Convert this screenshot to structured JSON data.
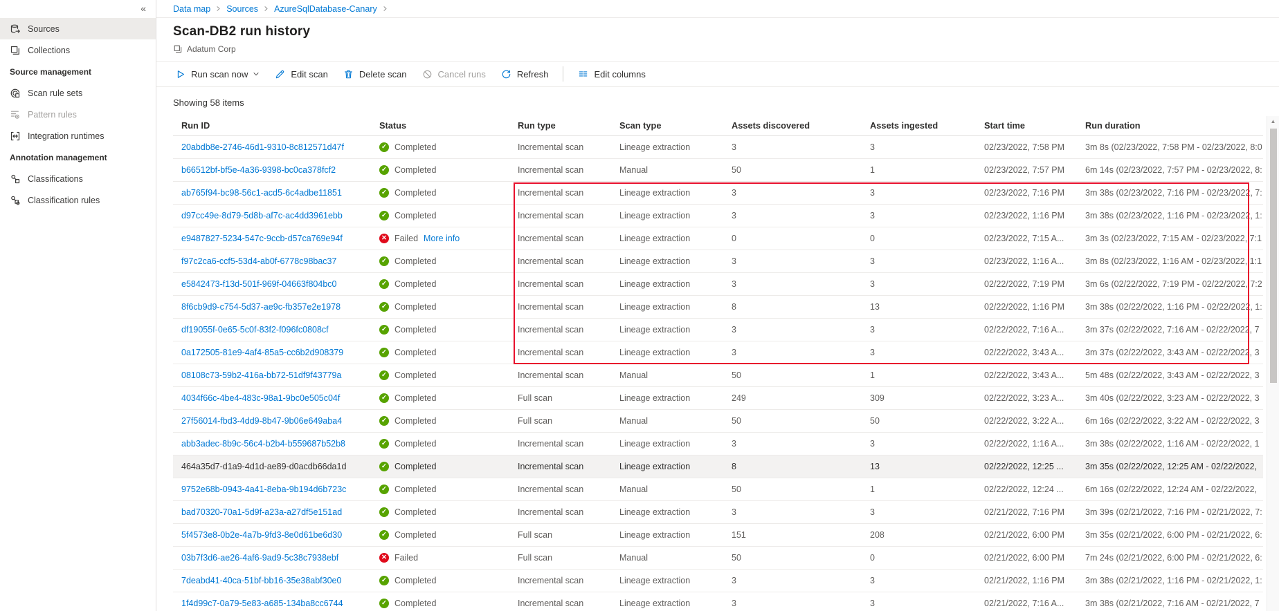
{
  "app": {
    "collapse_label": "«"
  },
  "sidebar": {
    "items": [
      {
        "type": "item",
        "label": "Sources",
        "icon": "sources-icon",
        "selected": true,
        "disabled": false
      },
      {
        "type": "item",
        "label": "Collections",
        "icon": "collections-icon",
        "selected": false,
        "disabled": false
      },
      {
        "type": "section",
        "label": "Source management"
      },
      {
        "type": "item",
        "label": "Scan rule sets",
        "icon": "scan-rule-sets-icon",
        "selected": false,
        "disabled": false
      },
      {
        "type": "item",
        "label": "Pattern rules",
        "icon": "pattern-rules-icon",
        "selected": false,
        "disabled": true
      },
      {
        "type": "item",
        "label": "Integration runtimes",
        "icon": "integration-runtimes-icon",
        "selected": false,
        "disabled": false
      },
      {
        "type": "section",
        "label": "Annotation management"
      },
      {
        "type": "item",
        "label": "Classifications",
        "icon": "classifications-icon",
        "selected": false,
        "disabled": false
      },
      {
        "type": "item",
        "label": "Classification rules",
        "icon": "classification-rules-icon",
        "selected": false,
        "disabled": false
      }
    ]
  },
  "breadcrumb": {
    "items": [
      "Data map",
      "Sources",
      "AzureSqlDatabase-Canary"
    ],
    "trailing_separator": true
  },
  "header": {
    "title": "Scan-DB2 run history",
    "collection": "Adatum Corp",
    "collection_icon": "collection-badge-icon"
  },
  "toolbar": {
    "buttons": [
      {
        "label": "Run scan now",
        "icon": "play-icon",
        "has_dropdown": true,
        "disabled": false,
        "separated": false
      },
      {
        "label": "Edit scan",
        "icon": "pencil-icon",
        "has_dropdown": false,
        "disabled": false,
        "separated": false
      },
      {
        "label": "Delete scan",
        "icon": "trash-icon",
        "has_dropdown": false,
        "disabled": false,
        "separated": false
      },
      {
        "label": "Cancel runs",
        "icon": "cancel-icon",
        "has_dropdown": false,
        "disabled": true,
        "separated": false
      },
      {
        "label": "Refresh",
        "icon": "refresh-icon",
        "has_dropdown": false,
        "disabled": false,
        "separated": false
      },
      {
        "label": "Edit columns",
        "icon": "columns-icon",
        "has_dropdown": false,
        "disabled": false,
        "separated": true
      }
    ]
  },
  "table": {
    "summary": "Showing 58 items",
    "columns": [
      "Run ID",
      "Status",
      "Run type",
      "Scan type",
      "Assets discovered",
      "Assets ingested",
      "Start time",
      "Run duration"
    ],
    "rows": [
      {
        "run_id": "20abdb8e-2746-46d1-9310-8c812571d47f",
        "status": "Completed",
        "more_info": "",
        "run_type": "Incremental scan",
        "scan_type": "Lineage extraction",
        "assets_discovered": "3",
        "assets_ingested": "3",
        "start_time": "02/23/2022, 7:58 PM",
        "run_duration": "3m 8s (02/23/2022, 7:58 PM - 02/23/2022, 8:0",
        "highlighted": false
      },
      {
        "run_id": "b66512bf-bf5e-4a36-9398-bc0ca378fcf2",
        "status": "Completed",
        "more_info": "",
        "run_type": "Incremental scan",
        "scan_type": "Manual",
        "assets_discovered": "50",
        "assets_ingested": "1",
        "start_time": "02/23/2022, 7:57 PM",
        "run_duration": "6m 14s (02/23/2022, 7:57 PM - 02/23/2022, 8:",
        "highlighted": false
      },
      {
        "run_id": "ab765f94-bc98-56c1-acd5-6c4adbe11851",
        "status": "Completed",
        "more_info": "",
        "run_type": "Incremental scan",
        "scan_type": "Lineage extraction",
        "assets_discovered": "3",
        "assets_ingested": "3",
        "start_time": "02/23/2022, 7:16 PM",
        "run_duration": "3m 38s (02/23/2022, 7:16 PM - 02/23/2022, 7:",
        "highlighted": false
      },
      {
        "run_id": "d97cc49e-8d79-5d8b-af7c-ac4dd3961ebb",
        "status": "Completed",
        "more_info": "",
        "run_type": "Incremental scan",
        "scan_type": "Lineage extraction",
        "assets_discovered": "3",
        "assets_ingested": "3",
        "start_time": "02/23/2022, 1:16 PM",
        "run_duration": "3m 38s (02/23/2022, 1:16 PM - 02/23/2022, 1:",
        "highlighted": false
      },
      {
        "run_id": "e9487827-5234-547c-9ccb-d57ca769e94f",
        "status": "Failed",
        "more_info": "More info",
        "run_type": "Incremental scan",
        "scan_type": "Lineage extraction",
        "assets_discovered": "0",
        "assets_ingested": "0",
        "start_time": "02/23/2022, 7:15 A...",
        "run_duration": "3m 3s (02/23/2022, 7:15 AM - 02/23/2022, 7:1",
        "highlighted": false
      },
      {
        "run_id": "f97c2ca6-ccf5-53d4-ab0f-6778c98bac37",
        "status": "Completed",
        "more_info": "",
        "run_type": "Incremental scan",
        "scan_type": "Lineage extraction",
        "assets_discovered": "3",
        "assets_ingested": "3",
        "start_time": "02/23/2022, 1:16 A...",
        "run_duration": "3m 8s (02/23/2022, 1:16 AM - 02/23/2022, 1:1",
        "highlighted": false
      },
      {
        "run_id": "e5842473-f13d-501f-969f-04663f804bc0",
        "status": "Completed",
        "more_info": "",
        "run_type": "Incremental scan",
        "scan_type": "Lineage extraction",
        "assets_discovered": "3",
        "assets_ingested": "3",
        "start_time": "02/22/2022, 7:19 PM",
        "run_duration": "3m 6s (02/22/2022, 7:19 PM - 02/22/2022, 7:2",
        "highlighted": false
      },
      {
        "run_id": "8f6cb9d9-c754-5d37-ae9c-fb357e2e1978",
        "status": "Completed",
        "more_info": "",
        "run_type": "Incremental scan",
        "scan_type": "Lineage extraction",
        "assets_discovered": "8",
        "assets_ingested": "13",
        "start_time": "02/22/2022, 1:16 PM",
        "run_duration": "3m 38s (02/22/2022, 1:16 PM - 02/22/2022, 1:",
        "highlighted": false
      },
      {
        "run_id": "df19055f-0e65-5c0f-83f2-f096fc0808cf",
        "status": "Completed",
        "more_info": "",
        "run_type": "Incremental scan",
        "scan_type": "Lineage extraction",
        "assets_discovered": "3",
        "assets_ingested": "3",
        "start_time": "02/22/2022, 7:16 A...",
        "run_duration": "3m 37s (02/22/2022, 7:16 AM - 02/22/2022, 7",
        "highlighted": false
      },
      {
        "run_id": "0a172505-81e9-4af4-85a5-cc6b2d908379",
        "status": "Completed",
        "more_info": "",
        "run_type": "Incremental scan",
        "scan_type": "Lineage extraction",
        "assets_discovered": "3",
        "assets_ingested": "3",
        "start_time": "02/22/2022, 3:43 A...",
        "run_duration": "3m 37s (02/22/2022, 3:43 AM - 02/22/2022, 3",
        "highlighted": false
      },
      {
        "run_id": "08108c73-59b2-416a-bb72-51df9f43779a",
        "status": "Completed",
        "more_info": "",
        "run_type": "Incremental scan",
        "scan_type": "Manual",
        "assets_discovered": "50",
        "assets_ingested": "1",
        "start_time": "02/22/2022, 3:43 A...",
        "run_duration": "5m 48s (02/22/2022, 3:43 AM - 02/22/2022, 3",
        "highlighted": false
      },
      {
        "run_id": "4034f66c-4be4-483c-98a1-9bc0e505c04f",
        "status": "Completed",
        "more_info": "",
        "run_type": "Full scan",
        "scan_type": "Lineage extraction",
        "assets_discovered": "249",
        "assets_ingested": "309",
        "start_time": "02/22/2022, 3:23 A...",
        "run_duration": "3m 40s (02/22/2022, 3:23 AM - 02/22/2022, 3",
        "highlighted": false
      },
      {
        "run_id": "27f56014-fbd3-4dd9-8b47-9b06e649aba4",
        "status": "Completed",
        "more_info": "",
        "run_type": "Full scan",
        "scan_type": "Manual",
        "assets_discovered": "50",
        "assets_ingested": "50",
        "start_time": "02/22/2022, 3:22 A...",
        "run_duration": "6m 16s (02/22/2022, 3:22 AM - 02/22/2022, 3",
        "highlighted": false
      },
      {
        "run_id": "abb3adec-8b9c-56c4-b2b4-b559687b52b8",
        "status": "Completed",
        "more_info": "",
        "run_type": "Incremental scan",
        "scan_type": "Lineage extraction",
        "assets_discovered": "3",
        "assets_ingested": "3",
        "start_time": "02/22/2022, 1:16 A...",
        "run_duration": "3m 38s (02/22/2022, 1:16 AM - 02/22/2022, 1",
        "highlighted": false
      },
      {
        "run_id": "464a35d7-d1a9-4d1d-ae89-d0acdb66da1d",
        "status": "Completed",
        "more_info": "",
        "run_type": "Incremental scan",
        "scan_type": "Lineage extraction",
        "assets_discovered": "8",
        "assets_ingested": "13",
        "start_time": "02/22/2022, 12:25 ...",
        "run_duration": "3m 35s (02/22/2022, 12:25 AM - 02/22/2022,",
        "highlighted": true
      },
      {
        "run_id": "9752e68b-0943-4a41-8eba-9b194d6b723c",
        "status": "Completed",
        "more_info": "",
        "run_type": "Incremental scan",
        "scan_type": "Manual",
        "assets_discovered": "50",
        "assets_ingested": "1",
        "start_time": "02/22/2022, 12:24 ...",
        "run_duration": "6m 16s (02/22/2022, 12:24 AM - 02/22/2022,",
        "highlighted": false
      },
      {
        "run_id": "bad70320-70a1-5d9f-a23a-a27df5e151ad",
        "status": "Completed",
        "more_info": "",
        "run_type": "Incremental scan",
        "scan_type": "Lineage extraction",
        "assets_discovered": "3",
        "assets_ingested": "3",
        "start_time": "02/21/2022, 7:16 PM",
        "run_duration": "3m 39s (02/21/2022, 7:16 PM - 02/21/2022, 7:",
        "highlighted": false
      },
      {
        "run_id": "5f4573e8-0b2e-4a7b-9fd3-8e0d61be6d30",
        "status": "Completed",
        "more_info": "",
        "run_type": "Full scan",
        "scan_type": "Lineage extraction",
        "assets_discovered": "151",
        "assets_ingested": "208",
        "start_time": "02/21/2022, 6:00 PM",
        "run_duration": "3m 35s (02/21/2022, 6:00 PM - 02/21/2022, 6:",
        "highlighted": false
      },
      {
        "run_id": "03b7f3d6-ae26-4af6-9ad9-5c38c7938ebf",
        "status": "Failed",
        "more_info": "",
        "run_type": "Full scan",
        "scan_type": "Manual",
        "assets_discovered": "50",
        "assets_ingested": "0",
        "start_time": "02/21/2022, 6:00 PM",
        "run_duration": "7m 24s (02/21/2022, 6:00 PM - 02/21/2022, 6:",
        "highlighted": false
      },
      {
        "run_id": "7deabd41-40ca-51bf-bb16-35e38abf30e0",
        "status": "Completed",
        "more_info": "",
        "run_type": "Incremental scan",
        "scan_type": "Lineage extraction",
        "assets_discovered": "3",
        "assets_ingested": "3",
        "start_time": "02/21/2022, 1:16 PM",
        "run_duration": "3m 38s (02/21/2022, 1:16 PM - 02/21/2022, 1:",
        "highlighted": false
      },
      {
        "run_id": "1f4d99c7-0a79-5e83-a685-134ba8cc6744",
        "status": "Completed",
        "more_info": "",
        "run_type": "Incremental scan",
        "scan_type": "Lineage extraction",
        "assets_discovered": "3",
        "assets_ingested": "3",
        "start_time": "02/21/2022, 7:16 A...",
        "run_duration": "3m 38s (02/21/2022, 7:16 AM - 02/21/2022, 7",
        "highlighted": false
      }
    ]
  },
  "annotation": {
    "shape": "red-highlight-box",
    "color": "#e8112d",
    "covers_rows_from": 3,
    "covers_rows_to": 10
  },
  "colors": {
    "accent": "#0078d4",
    "success": "#57a300",
    "error": "#e00b1c"
  }
}
